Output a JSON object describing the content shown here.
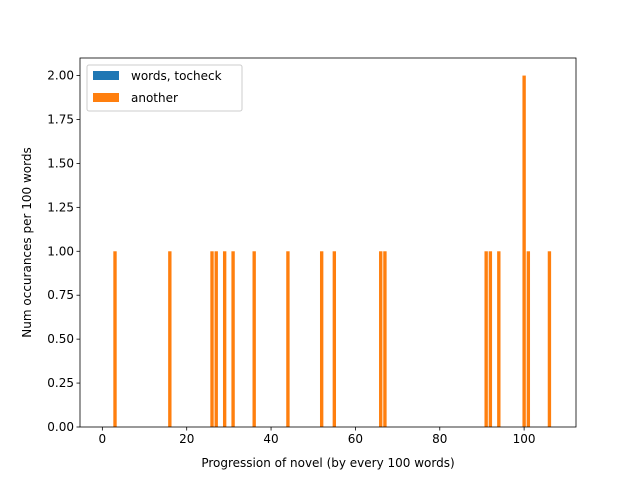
{
  "chart_data": {
    "type": "bar",
    "title": "",
    "xlabel": "Progression of novel (by every 100 words)",
    "ylabel": "Num occurances per 100 words",
    "xlim": [
      -5.3,
      112.3
    ],
    "ylim": [
      0,
      2.1
    ],
    "xticks": [
      0,
      20,
      40,
      60,
      80,
      100
    ],
    "xtick_labels": [
      "0",
      "20",
      "40",
      "60",
      "80",
      "100"
    ],
    "yticks": [
      0,
      0.25,
      0.5,
      0.75,
      1.0,
      1.25,
      1.5,
      1.75,
      2.0
    ],
    "ytick_labels": [
      "0.00",
      "0.25",
      "0.50",
      "0.75",
      "1.00",
      "1.25",
      "1.50",
      "1.75",
      "2.00"
    ],
    "grid": false,
    "legend_position": "upper-left",
    "series": [
      {
        "name": "words, tocheck",
        "color": "#1f77b4",
        "x": [],
        "values": []
      },
      {
        "name": "another",
        "color": "#ff7f0e",
        "x": [
          3,
          16,
          26,
          27,
          29,
          31,
          36,
          44,
          52,
          55,
          66,
          67,
          91,
          92,
          94,
          100,
          101,
          106
        ],
        "values": [
          1,
          1,
          1,
          1,
          1,
          1,
          1,
          1,
          1,
          1,
          1,
          1,
          1,
          1,
          1,
          2,
          1,
          1
        ]
      }
    ]
  }
}
